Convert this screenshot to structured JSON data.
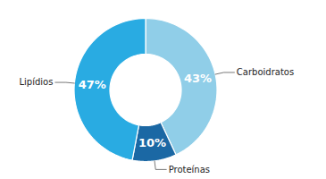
{
  "chart_data": {
    "type": "pie",
    "categories": [
      "Carboidratos",
      "Proteínas",
      "Lipídios"
    ],
    "values": [
      43,
      10,
      47
    ],
    "value_labels": [
      "43%",
      "10%",
      "47%"
    ],
    "colors": [
      "#90CEE8",
      "#1B68A4",
      "#29ABE2"
    ],
    "data_labels": true
  }
}
